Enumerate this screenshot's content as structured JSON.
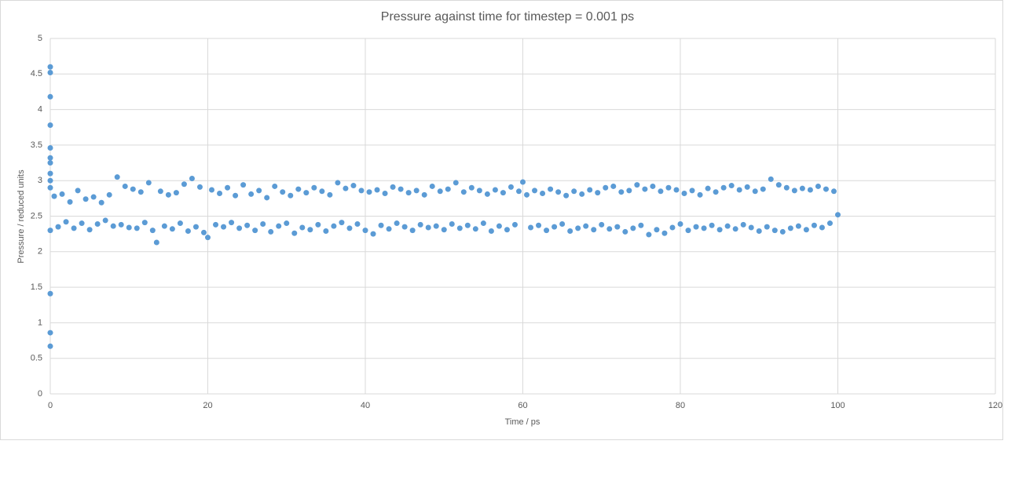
{
  "chart_data": {
    "type": "scatter",
    "title": "Pressure against time for timestep = 0.001 ps",
    "x_label": "Time / ps",
    "y_label": "Pressure / reduced units",
    "xlim": [
      0,
      120
    ],
    "xticks": [
      0,
      20,
      40,
      60,
      80,
      100,
      120
    ],
    "ylim": [
      0,
      5
    ],
    "yticks": [
      0,
      0.5,
      1,
      1.5,
      2,
      2.5,
      3,
      3.5,
      4,
      4.5,
      5
    ],
    "grid": true,
    "color": "#5b9bd5",
    "x": [
      0,
      0,
      0,
      0,
      0,
      0,
      0,
      0,
      0,
      0,
      0,
      0,
      0,
      0,
      0.5,
      1,
      1.5,
      2,
      2.5,
      3,
      3.5,
      4,
      4.5,
      5,
      5.5,
      6,
      6.5,
      7,
      7.5,
      8,
      8.5,
      9,
      9.5,
      10,
      10.5,
      11,
      11.5,
      12,
      12.5,
      13,
      13.5,
      14,
      14.5,
      15,
      15.5,
      16,
      16.5,
      17,
      17.5,
      18,
      18.5,
      19,
      19.5,
      20,
      20.5,
      21,
      21.5,
      22,
      22.5,
      23,
      23.5,
      24,
      24.5,
      25,
      25.5,
      26,
      26.5,
      27,
      27.5,
      28,
      28.5,
      29,
      29.5,
      30,
      30.5,
      31,
      31.5,
      32,
      32.5,
      33,
      33.5,
      34,
      34.5,
      35,
      35.5,
      36,
      36.5,
      37,
      37.5,
      38,
      38.5,
      39,
      39.5,
      40,
      40.5,
      41,
      41.5,
      42,
      42.5,
      43,
      43.5,
      44,
      44.5,
      45,
      45.5,
      46,
      46.5,
      47,
      47.5,
      48,
      48.5,
      49,
      49.5,
      50,
      50.5,
      51,
      51.5,
      52,
      52.5,
      53,
      53.5,
      54,
      54.5,
      55,
      55.5,
      56,
      56.5,
      57,
      57.5,
      58,
      58.5,
      59,
      59.5,
      60,
      60.5,
      61,
      61.5,
      62,
      62.5,
      63,
      63.5,
      64,
      64.5,
      65,
      65.5,
      66,
      66.5,
      67,
      67.5,
      68,
      68.5,
      69,
      69.5,
      70,
      70.5,
      71,
      71.5,
      72,
      72.5,
      73,
      73.5,
      74,
      74.5,
      75,
      75.5,
      76,
      76.5,
      77,
      77.5,
      78,
      78.5,
      79,
      79.5,
      80,
      80.5,
      81,
      81.5,
      82,
      82.5,
      83,
      83.5,
      84,
      84.5,
      85,
      85.5,
      86,
      86.5,
      87,
      87.5,
      88,
      88.5,
      89,
      89.5,
      90,
      90.5,
      91,
      91.5,
      92,
      92.5,
      93,
      93.5,
      94,
      94.5,
      95,
      95.5,
      96,
      96.5,
      97,
      97.5,
      98,
      98.5,
      99,
      99.5,
      100
    ],
    "values": [
      4.6,
      4.52,
      4.18,
      3.78,
      3.46,
      3.32,
      3.25,
      3.1,
      3.0,
      2.9,
      2.3,
      1.41,
      0.86,
      0.67,
      2.78,
      2.35,
      2.81,
      2.42,
      2.7,
      2.33,
      2.86,
      2.4,
      2.74,
      2.31,
      2.77,
      2.39,
      2.69,
      2.44,
      2.8,
      2.36,
      3.05,
      2.38,
      2.92,
      2.34,
      2.88,
      2.33,
      2.84,
      2.41,
      2.97,
      2.3,
      2.13,
      2.85,
      2.36,
      2.8,
      2.32,
      2.83,
      2.4,
      2.95,
      2.29,
      3.03,
      2.35,
      2.91,
      2.27,
      2.2,
      2.87,
      2.38,
      2.82,
      2.35,
      2.9,
      2.41,
      2.79,
      2.33,
      2.94,
      2.37,
      2.81,
      2.3,
      2.86,
      2.39,
      2.76,
      2.28,
      2.92,
      2.36,
      2.84,
      2.4,
      2.79,
      2.26,
      2.88,
      2.34,
      2.83,
      2.31,
      2.9,
      2.38,
      2.85,
      2.29,
      2.8,
      2.36,
      2.97,
      2.41,
      2.89,
      2.33,
      2.93,
      2.39,
      2.86,
      2.3,
      2.84,
      2.25,
      2.87,
      2.37,
      2.82,
      2.32,
      2.91,
      2.4,
      2.88,
      2.35,
      2.83,
      2.3,
      2.86,
      2.38,
      2.8,
      2.34,
      2.92,
      2.36,
      2.85,
      2.31,
      2.88,
      2.39,
      2.97,
      2.33,
      2.84,
      2.37,
      2.9,
      2.32,
      2.86,
      2.4,
      2.81,
      2.29,
      2.87,
      2.36,
      2.83,
      2.31,
      2.91,
      2.38,
      2.85,
      2.98,
      2.8,
      2.34,
      2.86,
      2.37,
      2.82,
      2.3,
      2.88,
      2.35,
      2.84,
      2.39,
      2.79,
      2.29,
      2.85,
      2.33,
      2.81,
      2.36,
      2.87,
      2.31,
      2.83,
      2.38,
      2.9,
      2.32,
      2.92,
      2.35,
      2.84,
      2.28,
      2.86,
      2.33,
      2.94,
      2.37,
      2.88,
      2.24,
      2.92,
      2.31,
      2.85,
      2.26,
      2.9,
      2.34,
      2.87,
      2.39,
      2.82,
      2.3,
      2.86,
      2.35,
      2.8,
      2.33,
      2.89,
      2.37,
      2.84,
      2.31,
      2.9,
      2.36,
      2.93,
      2.32,
      2.87,
      2.38,
      2.91,
      2.34,
      2.85,
      2.29,
      2.88,
      2.35,
      3.02,
      2.3,
      2.94,
      2.28,
      2.9,
      2.33,
      2.86,
      2.36,
      2.89,
      2.31,
      2.87,
      2.37,
      2.92,
      2.34,
      2.88,
      2.4,
      2.85,
      2.52
    ]
  }
}
